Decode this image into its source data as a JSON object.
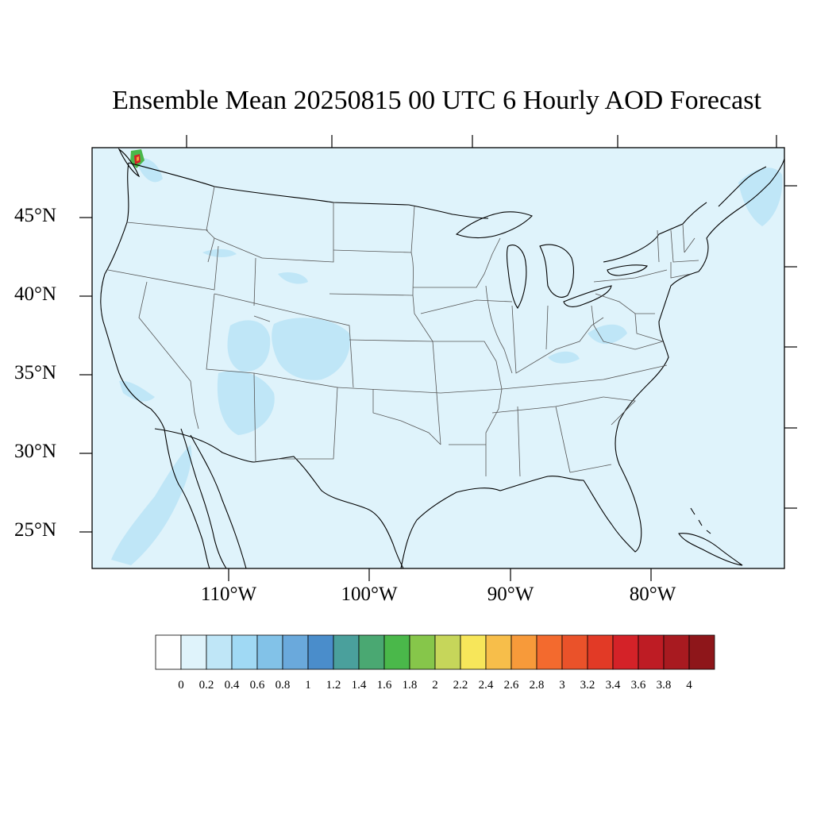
{
  "title": "Ensemble Mean 20250815 00 UTC 6 Hourly AOD Forecast",
  "map": {
    "background_color": "#dff3fb",
    "lat_labels": [
      "45°N",
      "40°N",
      "35°N",
      "30°N",
      "25°N"
    ],
    "lon_labels": [
      "110°W",
      "100°W",
      "90°W",
      "80°W"
    ]
  },
  "colorbar": {
    "labels": [
      "0",
      "0.2",
      "0.4",
      "0.6",
      "0.8",
      "1",
      "1.2",
      "1.4",
      "1.6",
      "1.8",
      "2",
      "2.2",
      "2.4",
      "2.6",
      "2.8",
      "3",
      "3.2",
      "3.4",
      "3.6",
      "3.8",
      "4"
    ],
    "colors": [
      "#ffffff",
      "#dff3fb",
      "#bfe6f7",
      "#a0d9f4",
      "#82c2e8",
      "#6aa9dc",
      "#4a8dcb",
      "#4aa09c",
      "#4aa872",
      "#4ab84a",
      "#86c64a",
      "#c6d65a",
      "#f7e65a",
      "#f7be4a",
      "#f79a3a",
      "#f36a2e",
      "#ea522a",
      "#e23a26",
      "#d42228",
      "#be1c24",
      "#a81a20",
      "#8e161a"
    ]
  }
}
